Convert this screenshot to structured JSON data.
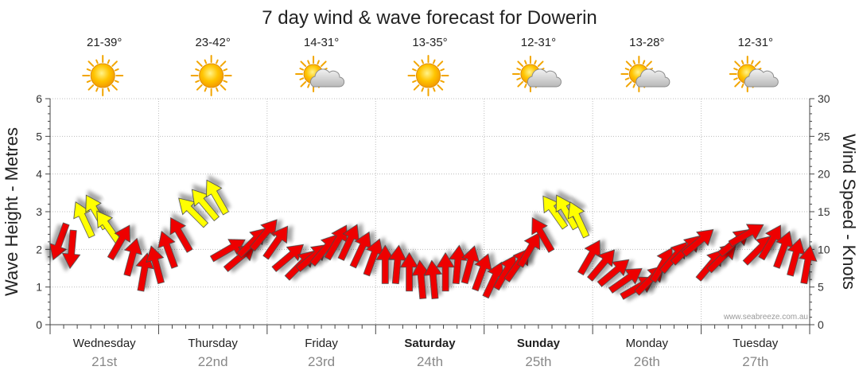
{
  "chart_data": {
    "type": "line",
    "title": "7 day wind & wave forecast for Dowerin",
    "y_left_label": "Wave Height - Metres",
    "y_right_label": "Wind Speed - Knots",
    "y_left_range": [
      0,
      6
    ],
    "y_left_ticks": [
      "0",
      "1",
      "2",
      "3",
      "4",
      "5",
      "6"
    ],
    "y_right_range": [
      0,
      30
    ],
    "y_right_ticks": [
      "0",
      "5",
      "10",
      "15",
      "20",
      "25",
      "30"
    ],
    "grid": true,
    "watermark": "www.seabreeze.com.au",
    "days": [
      {
        "name": "Wednesday",
        "date": "21st",
        "temp": "21-39°",
        "icon": "sun-icon",
        "bold": false
      },
      {
        "name": "Thursday",
        "date": "22nd",
        "temp": "23-42°",
        "icon": "sun-icon",
        "bold": false
      },
      {
        "name": "Friday",
        "date": "23rd",
        "temp": "14-31°",
        "icon": "sun-cloud-icon",
        "bold": false
      },
      {
        "name": "Saturday",
        "date": "24th",
        "temp": "13-35°",
        "icon": "sun-icon",
        "bold": true
      },
      {
        "name": "Sunday",
        "date": "25th",
        "temp": "12-31°",
        "icon": "sun-cloud-icon",
        "bold": true
      },
      {
        "name": "Monday",
        "date": "26th",
        "temp": "13-28°",
        "icon": "sun-cloud-icon",
        "bold": false
      },
      {
        "name": "Tuesday",
        "date": "27th",
        "temp": "12-31°",
        "icon": "sun-cloud-icon",
        "bold": false
      }
    ],
    "x_days": [
      0.0,
      0.111,
      0.222,
      0.333,
      0.444,
      0.556,
      0.667,
      0.778,
      0.889,
      1.0,
      1.111,
      1.222,
      1.333,
      1.444,
      1.556,
      1.667,
      1.778,
      1.889,
      2.0,
      2.111,
      2.222,
      2.333,
      2.444,
      2.556,
      2.667,
      2.778,
      2.889,
      3.0,
      3.111,
      3.222,
      3.333,
      3.444,
      3.556,
      3.667,
      3.778,
      3.889,
      4.0,
      4.111,
      4.222,
      4.333,
      4.444,
      4.556,
      4.667,
      4.778,
      4.889,
      5.0,
      5.111,
      5.222,
      5.333,
      5.444,
      5.556,
      5.667,
      5.778,
      5.889,
      6.0,
      6.111,
      6.222,
      6.333,
      6.444,
      6.556,
      6.667,
      6.778,
      6.889
    ],
    "wind_knots": [
      11,
      10,
      14,
      15,
      13,
      11,
      9,
      7,
      8,
      10,
      12,
      15,
      16,
      17,
      10,
      9,
      11,
      12,
      11,
      9,
      8,
      9,
      10,
      11,
      11,
      10,
      9,
      8,
      8,
      7,
      6,
      6,
      7,
      8,
      8,
      7,
      6,
      7,
      8,
      10,
      12,
      15,
      15,
      14,
      9,
      8,
      7,
      6,
      5,
      6,
      8,
      9,
      10,
      11,
      8,
      9,
      11,
      12,
      10,
      11,
      10,
      9,
      8
    ],
    "wind_dir_deg": [
      110,
      95,
      245,
      240,
      235,
      300,
      285,
      280,
      255,
      250,
      240,
      225,
      230,
      240,
      330,
      320,
      315,
      310,
      305,
      320,
      315,
      320,
      310,
      300,
      295,
      295,
      290,
      270,
      275,
      270,
      265,
      265,
      270,
      275,
      285,
      290,
      295,
      300,
      305,
      300,
      240,
      235,
      240,
      245,
      300,
      310,
      320,
      325,
      330,
      315,
      300,
      310,
      315,
      320,
      310,
      315,
      320,
      330,
      315,
      300,
      290,
      285,
      280
    ],
    "wind_color": [
      {
        "max_knots": 12,
        "color": "#ee0000"
      },
      {
        "max_knots": 20,
        "color": "#ffff00"
      }
    ]
  }
}
